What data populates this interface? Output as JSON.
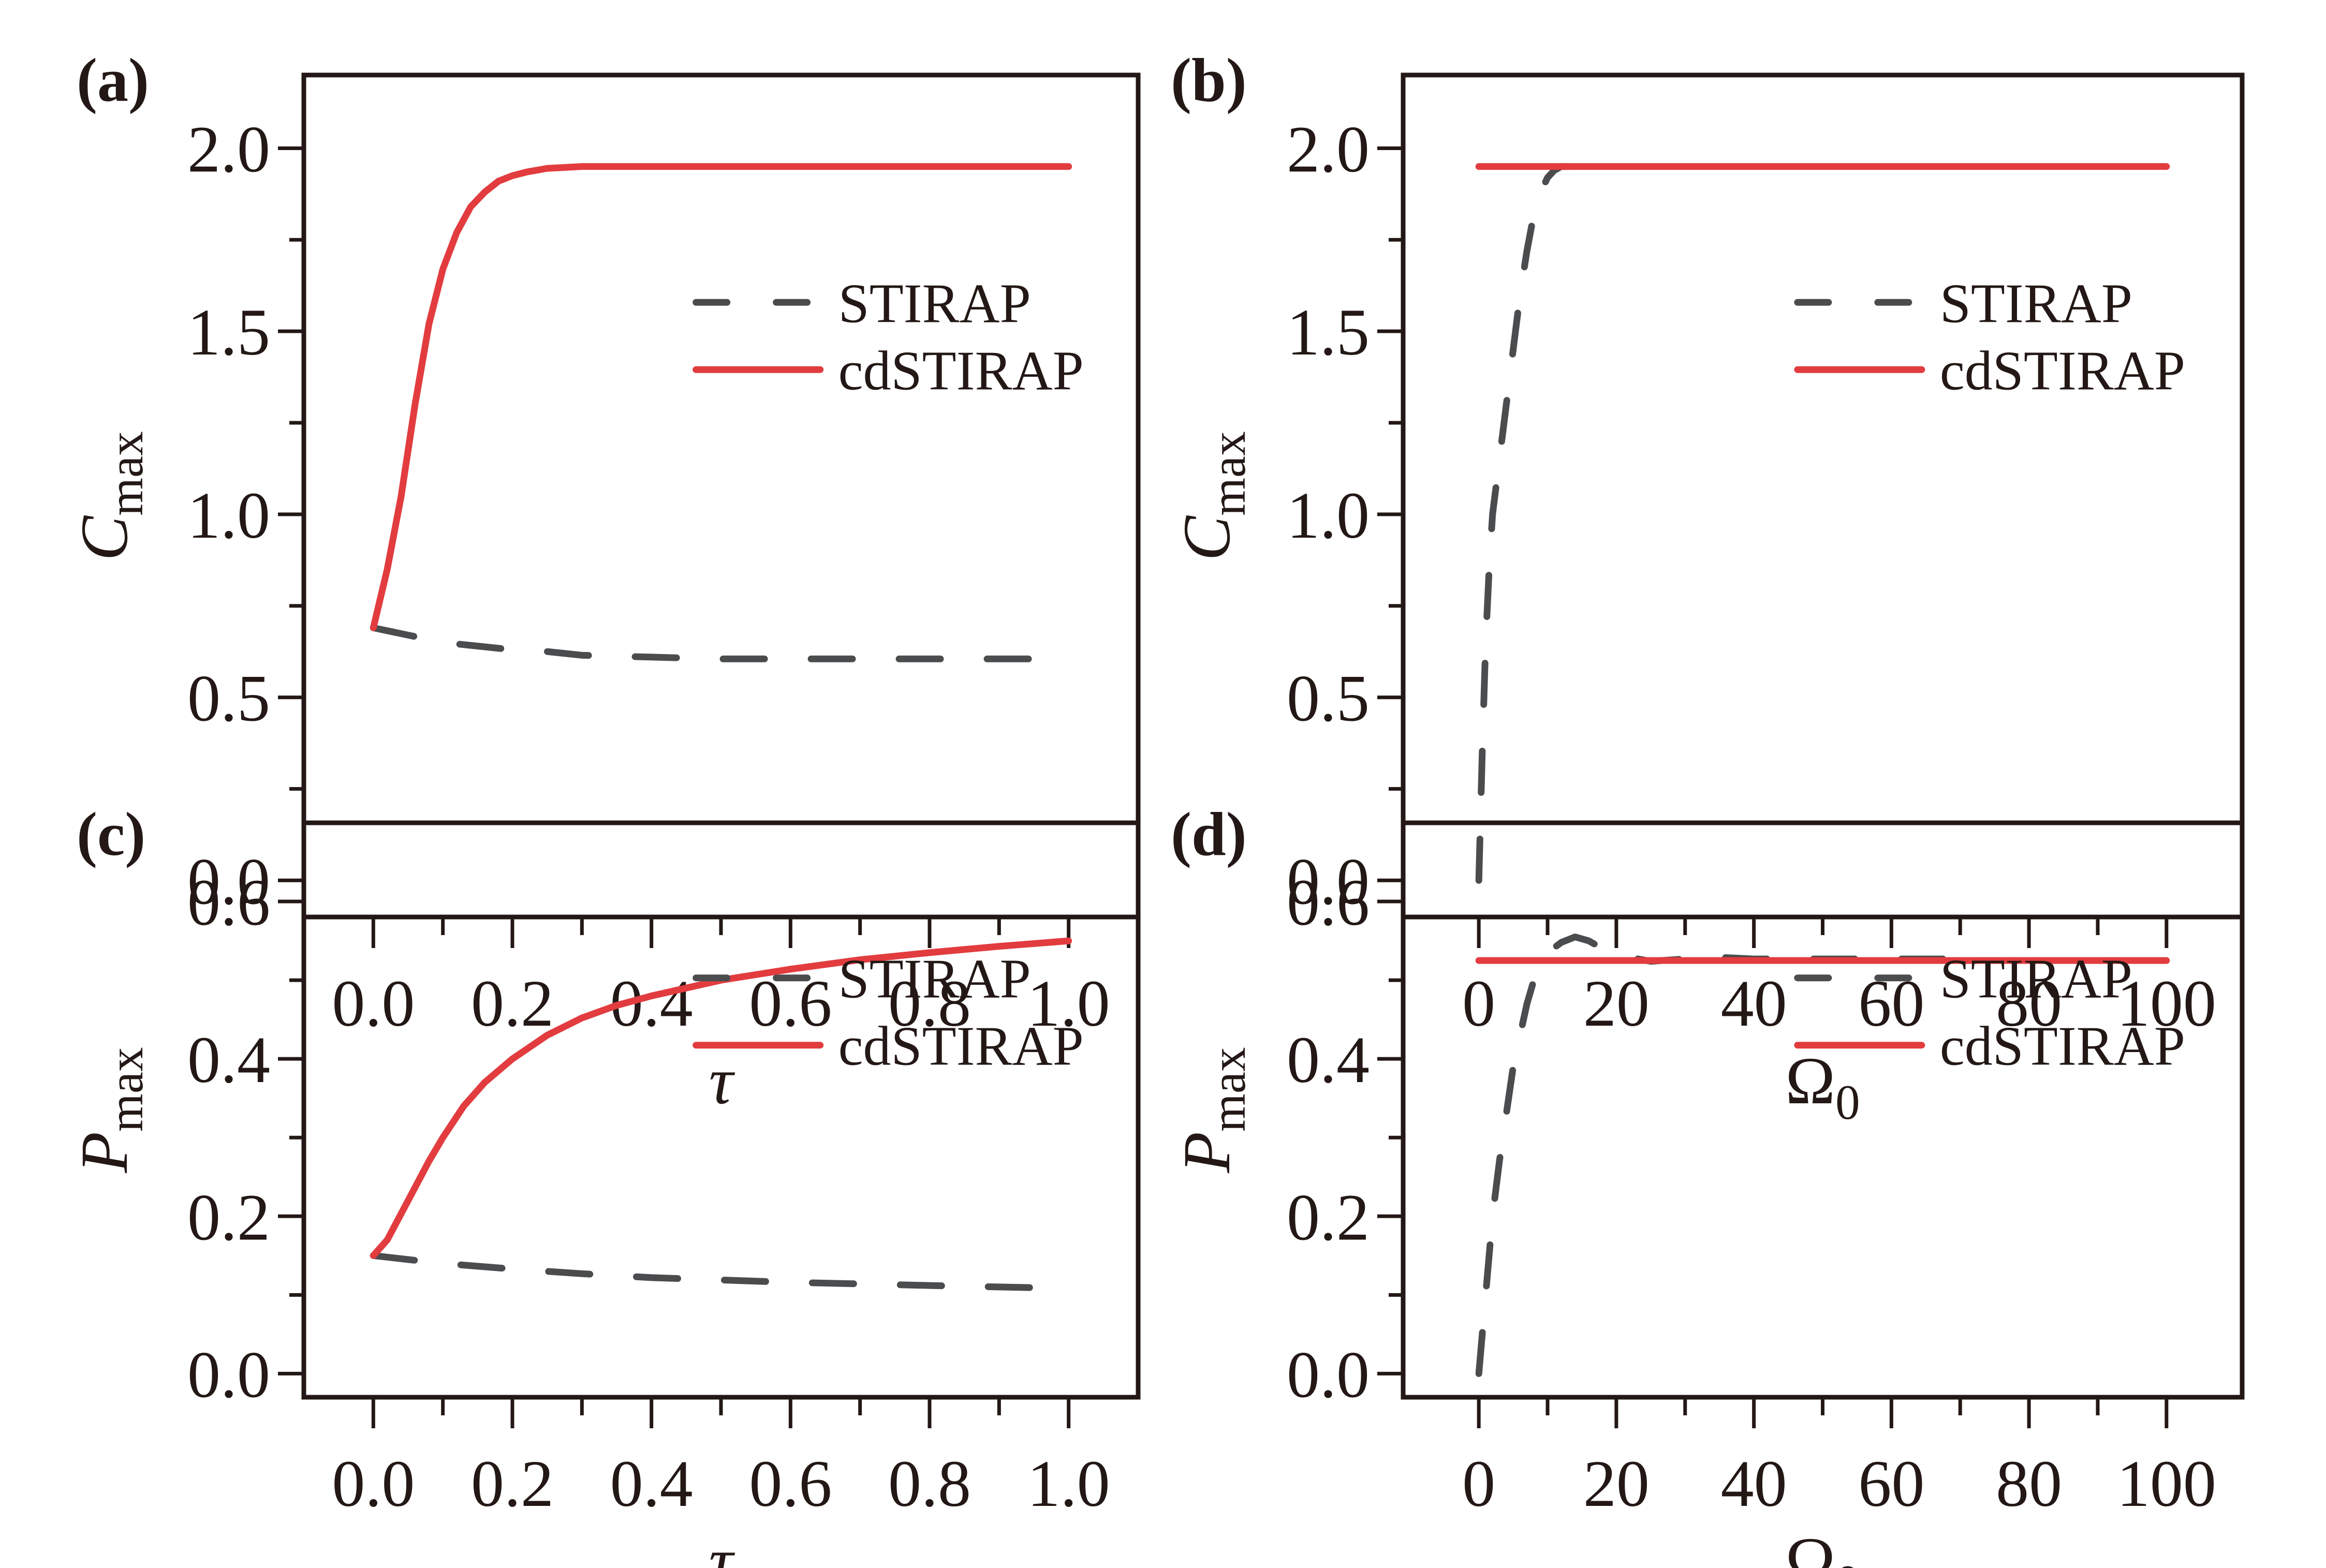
{
  "chart_data": [
    {
      "id": "a",
      "type": "line",
      "panel_label": "(a)",
      "title": "",
      "xlabel": "τ",
      "ylabel_main": "C",
      "ylabel_sub": "max",
      "xlim": [
        -0.1,
        1.1
      ],
      "ylim": [
        -0.1,
        2.2
      ],
      "xticks": [
        0.0,
        0.2,
        0.4,
        0.6,
        0.8,
        1.0
      ],
      "xtick_labels": [
        "0.0",
        "0.2",
        "0.4",
        "0.6",
        "0.8",
        "1.0"
      ],
      "xminor": [
        0.1,
        0.3,
        0.5,
        0.7,
        0.9
      ],
      "yticks": [
        0.0,
        0.5,
        1.0,
        1.5,
        2.0
      ],
      "ytick_labels": [
        "0.0",
        "0.5",
        "1.0",
        "1.5",
        "2.0"
      ],
      "yminor": [
        0.25,
        0.75,
        1.25,
        1.75
      ],
      "legend": "right",
      "grid": false,
      "series": [
        {
          "name": "STIRAP",
          "style": "dashed",
          "color": "#4a4c4e",
          "x": [
            0,
            0.05,
            0.1,
            0.15,
            0.2,
            0.25,
            0.3,
            0.4,
            0.5,
            0.6,
            0.7,
            0.8,
            0.9,
            0.96
          ],
          "y": [
            0.69,
            0.67,
            0.65,
            0.64,
            0.63,
            0.625,
            0.615,
            0.61,
            0.605,
            0.605,
            0.605,
            0.605,
            0.605,
            0.605
          ]
        },
        {
          "name": "cdSTIRAP",
          "style": "solid",
          "color": "#e23c3f",
          "x": [
            0,
            0.02,
            0.04,
            0.06,
            0.08,
            0.1,
            0.12,
            0.14,
            0.16,
            0.18,
            0.2,
            0.22,
            0.25,
            0.3,
            0.35,
            0.5,
            0.75,
            1.0
          ],
          "y": [
            0.69,
            0.85,
            1.05,
            1.3,
            1.52,
            1.67,
            1.77,
            1.84,
            1.88,
            1.91,
            1.925,
            1.935,
            1.945,
            1.95,
            1.95,
            1.95,
            1.95,
            1.95
          ]
        }
      ]
    },
    {
      "id": "b",
      "type": "line",
      "panel_label": "(b)",
      "title": "",
      "xlabel": "Ω",
      "xlabel_sub": "0",
      "ylabel_main": "C",
      "ylabel_sub": "max",
      "xlim": [
        -11,
        111
      ],
      "ylim": [
        -0.1,
        2.2
      ],
      "xticks": [
        0,
        20,
        40,
        60,
        80,
        100
      ],
      "xtick_labels": [
        "0",
        "20",
        "40",
        "60",
        "80",
        "100"
      ],
      "xminor": [
        10,
        30,
        50,
        70,
        90
      ],
      "yticks": [
        0.0,
        0.5,
        1.0,
        1.5,
        2.0
      ],
      "ytick_labels": [
        "0.0",
        "0.5",
        "1.0",
        "1.5",
        "2.0"
      ],
      "yminor": [
        0.25,
        0.75,
        1.25,
        1.75
      ],
      "legend": "right",
      "grid": false,
      "series": [
        {
          "name": "STIRAP",
          "style": "dashed",
          "color": "#4a4c4e",
          "x": [
            0,
            0.5,
            1,
            1.5,
            2,
            3,
            4,
            5,
            6,
            7,
            8,
            9,
            10,
            11,
            12,
            13
          ],
          "y": [
            0.0,
            0.35,
            0.65,
            0.85,
            1.0,
            1.15,
            1.3,
            1.45,
            1.6,
            1.72,
            1.82,
            1.88,
            1.92,
            1.94,
            1.95,
            1.95
          ]
        },
        {
          "name": "cdSTIRAP",
          "style": "solid",
          "color": "#e23c3f",
          "x": [
            0,
            100
          ],
          "y": [
            1.95,
            1.95
          ]
        }
      ]
    },
    {
      "id": "c",
      "type": "line",
      "panel_label": "(c)",
      "title": "",
      "xlabel": "τ",
      "ylabel_main": "P",
      "ylabel_sub": "max",
      "xlim": [
        -0.1,
        1.1
      ],
      "ylim": [
        -0.03,
        0.7
      ],
      "xticks": [
        0.0,
        0.2,
        0.4,
        0.6,
        0.8,
        1.0
      ],
      "xtick_labels": [
        "0.0",
        "0.2",
        "0.4",
        "0.6",
        "0.8",
        "1.0"
      ],
      "xminor": [
        0.1,
        0.3,
        0.5,
        0.7,
        0.9
      ],
      "yticks": [
        0.0,
        0.2,
        0.4,
        0.6
      ],
      "ytick_labels": [
        "0.0",
        "0.2",
        "0.4",
        "0.6"
      ],
      "yminor": [
        0.1,
        0.3,
        0.5
      ],
      "legend": "right",
      "grid": false,
      "series": [
        {
          "name": "STIRAP",
          "style": "dashed",
          "color": "#4a4c4e",
          "x": [
            0,
            0.1,
            0.2,
            0.3,
            0.4,
            0.5,
            0.6,
            0.7,
            0.8,
            0.96
          ],
          "y": [
            0.15,
            0.14,
            0.133,
            0.127,
            0.122,
            0.119,
            0.116,
            0.114,
            0.112,
            0.109
          ]
        },
        {
          "name": "cdSTIRAP",
          "style": "solid",
          "color": "#e23c3f",
          "x": [
            0,
            0.02,
            0.05,
            0.08,
            0.1,
            0.13,
            0.16,
            0.2,
            0.25,
            0.3,
            0.35,
            0.4,
            0.5,
            0.6,
            0.7,
            0.8,
            0.9,
            1.0
          ],
          "y": [
            0.15,
            0.17,
            0.22,
            0.27,
            0.3,
            0.34,
            0.37,
            0.4,
            0.43,
            0.452,
            0.468,
            0.48,
            0.5,
            0.514,
            0.526,
            0.535,
            0.543,
            0.55
          ]
        }
      ]
    },
    {
      "id": "d",
      "type": "line",
      "panel_label": "(d)",
      "title": "",
      "xlabel": "Ω",
      "xlabel_sub": "0",
      "ylabel_main": "P",
      "ylabel_sub": "max",
      "xlim": [
        -11,
        111
      ],
      "ylim": [
        -0.03,
        0.7
      ],
      "xticks": [
        0,
        20,
        40,
        60,
        80,
        100
      ],
      "xtick_labels": [
        "0",
        "20",
        "40",
        "60",
        "80",
        "100"
      ],
      "xminor": [
        10,
        30,
        50,
        70,
        90
      ],
      "yticks": [
        0.0,
        0.2,
        0.4,
        0.6
      ],
      "ytick_labels": [
        "0.0",
        "0.2",
        "0.4",
        "0.6"
      ],
      "yminor": [
        0.1,
        0.3,
        0.5
      ],
      "legend": "right",
      "grid": false,
      "series": [
        {
          "name": "STIRAP",
          "style": "dashed",
          "color": "#4a4c4e",
          "x": [
            0,
            1,
            2,
            3,
            4,
            5,
            6,
            7,
            8,
            9,
            10,
            12,
            14,
            16,
            18,
            20,
            25,
            30,
            35,
            40,
            50,
            60,
            70,
            73
          ],
          "y": [
            0.0,
            0.1,
            0.2,
            0.27,
            0.33,
            0.39,
            0.43,
            0.47,
            0.5,
            0.52,
            0.535,
            0.548,
            0.555,
            0.55,
            0.54,
            0.532,
            0.524,
            0.527,
            0.529,
            0.527,
            0.527,
            0.527,
            0.527,
            0.527
          ]
        },
        {
          "name": "cdSTIRAP",
          "style": "solid",
          "color": "#e23c3f",
          "x": [
            0,
            100
          ],
          "y": [
            0.525,
            0.525
          ]
        }
      ]
    }
  ]
}
